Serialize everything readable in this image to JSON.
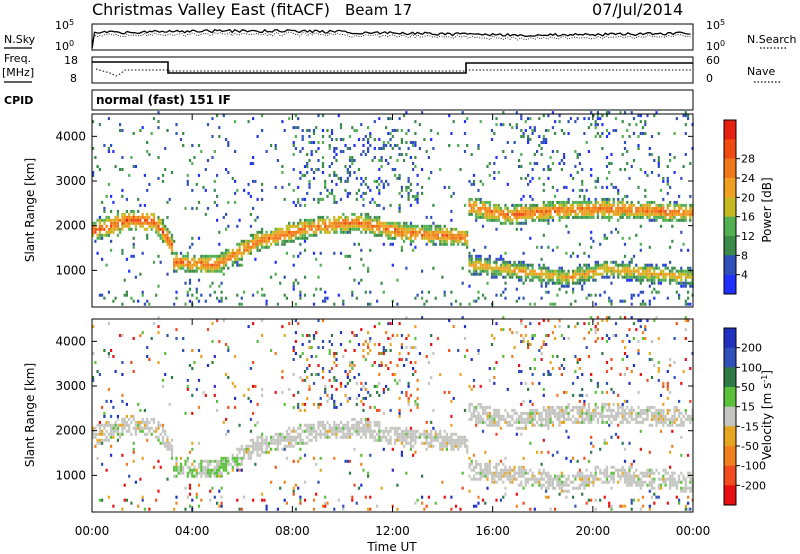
{
  "header": {
    "station": "Christmas Valley East (fitACF)",
    "beam": "Beam 17",
    "date": "07/Jul/2014"
  },
  "labels": {
    "nsky": "N.Sky",
    "nsearch": "N.Search",
    "freq": "Freq.",
    "freq_unit": "[MHz]",
    "nave": "Nave",
    "cpid": "CPID",
    "cpid_value": "normal (fast) 151 IF",
    "xlabel": "Time UT"
  },
  "noise_panel": {
    "left_ticks": [
      "10^5",
      "10^0"
    ],
    "right_ticks": [
      "10^5",
      "10^0"
    ]
  },
  "freq_panel": {
    "left_ticks": [
      "18",
      "8"
    ],
    "right_ticks": [
      "60",
      "0"
    ]
  },
  "colors": {
    "power_scale": [
      "#2030ff",
      "#2f50b8",
      "#3a8a4a",
      "#52b052",
      "#c8b820",
      "#f0a020",
      "#f07818",
      "#f04a10",
      "#e82010"
    ],
    "velocity_scale": [
      "#2030c0",
      "#2f50b8",
      "#2e7a44",
      "#5bc03a",
      "#c4c4c0",
      "#e8a620",
      "#f08020",
      "#f04c20",
      "#e81010"
    ]
  },
  "chart_data": [
    {
      "type": "heatmap",
      "title": "Power",
      "ylabel": "Slant Range [km]",
      "xlabel": "Time UT",
      "x_ticks": [
        "00:00",
        "04:00",
        "08:00",
        "12:00",
        "16:00",
        "20:00",
        "00:00"
      ],
      "y_ticks": [
        1000,
        2000,
        3000,
        4000
      ],
      "ylim": [
        180,
        4500
      ],
      "colorbar": {
        "label": "Power [dB]",
        "ticks": [
          4,
          8,
          12,
          16,
          20,
          24,
          28
        ]
      },
      "echo_bands": [
        {
          "t": [
            0,
            1.5,
            2.5,
            3.2
          ],
          "range": [
            1850,
            2100,
            2050,
            1500
          ],
          "power_db": 26
        },
        {
          "t": [
            3.2,
            5,
            6.5,
            8.5,
            10.5,
            12.5,
            15
          ],
          "range": [
            1150,
            1100,
            1600,
            1900,
            2050,
            1800,
            1700
          ],
          "power_db": 24
        },
        {
          "t": [
            15,
            16.5,
            18.5,
            20.5,
            24
          ],
          "range": [
            2400,
            2200,
            2300,
            2350,
            2250
          ],
          "power_db": 24
        },
        {
          "t": [
            15,
            17,
            19,
            20.5,
            24
          ],
          "range": [
            1100,
            950,
            800,
            1000,
            800
          ],
          "power_db": 20
        }
      ]
    },
    {
      "type": "heatmap",
      "title": "Velocity",
      "ylabel": "Slant Range [km]",
      "xlabel": "Time UT",
      "x_ticks": [
        "00:00",
        "04:00",
        "08:00",
        "12:00",
        "16:00",
        "20:00",
        "00:00"
      ],
      "y_ticks": [
        1000,
        2000,
        3000,
        4000
      ],
      "ylim": [
        180,
        4500
      ],
      "colorbar": {
        "label": "Velocity [m s^-1]",
        "ticks": [
          200,
          100,
          50,
          15,
          -15,
          -50,
          -100,
          -200
        ]
      }
    }
  ]
}
